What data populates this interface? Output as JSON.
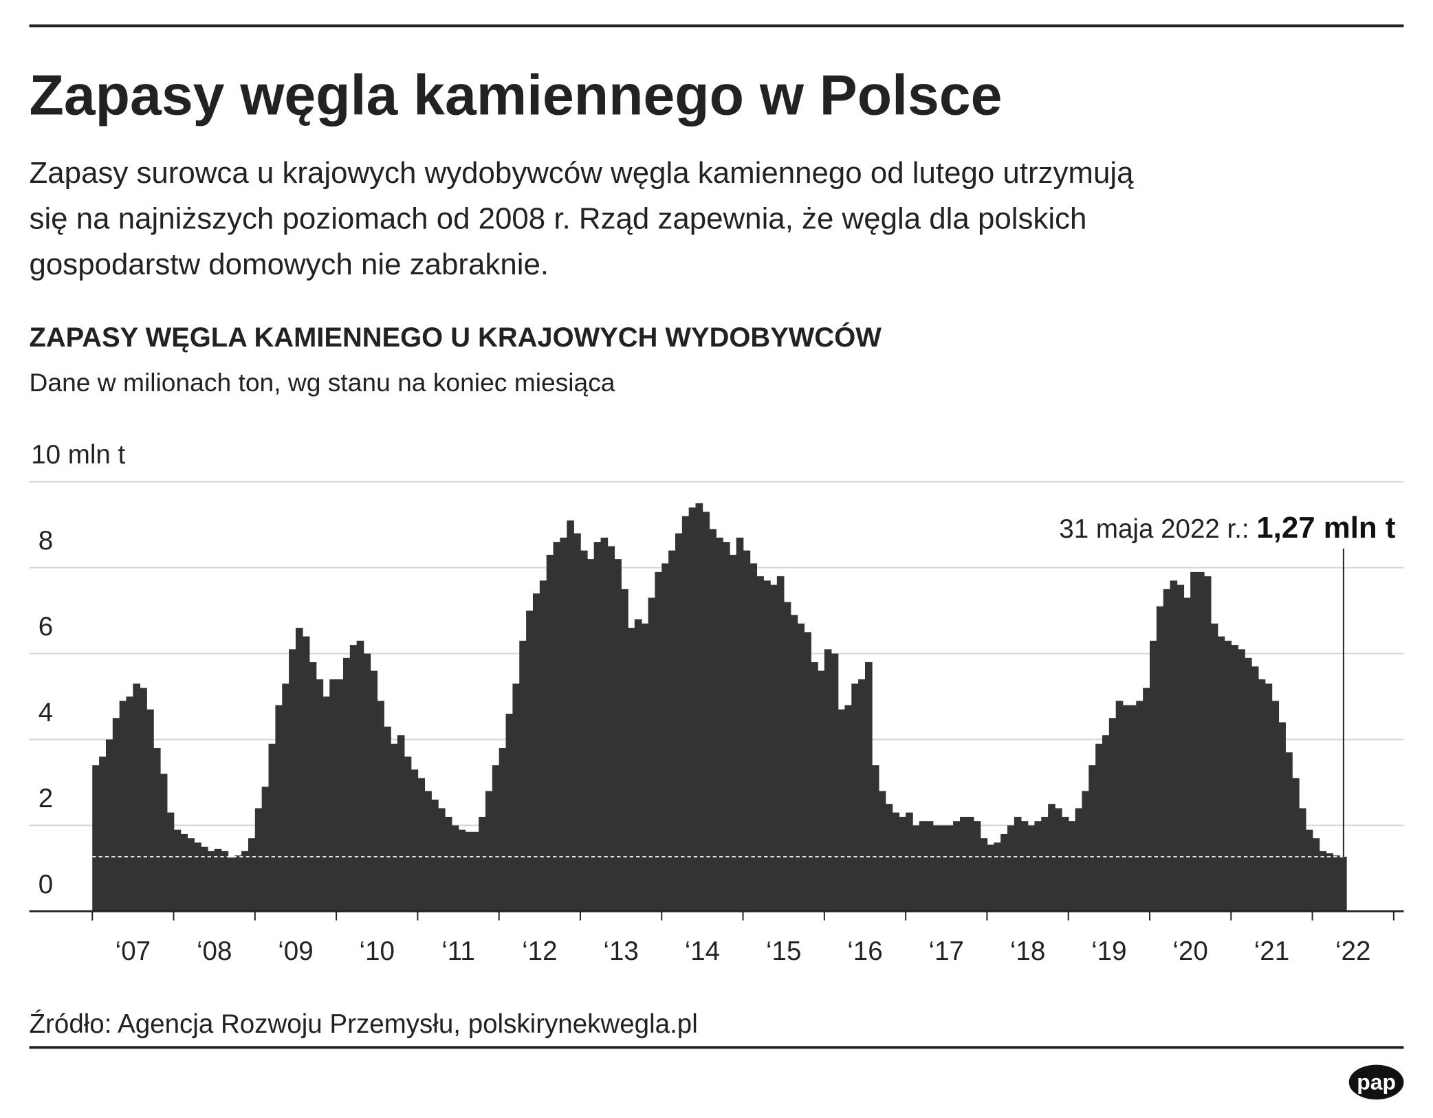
{
  "chart_data": {
    "type": "bar",
    "title": "Zapasy węgla kamiennego w Polsce",
    "description": [
      "Zapasy surowca u krajowych wydobywców węgla kamiennego od lutego utrzymują",
      "się na najniższych poziomach od 2008 r. Rząd zapewnia, że węgla dla polskich",
      "gospodarstw domowych nie zabraknie."
    ],
    "chart_title": "ZAPASY WĘGLA KAMIENNEGO U KRAJOWYCH WYDOBYWCÓW",
    "subtitle": "Dane w milionach ton, wg stanu na koniec miesiąca",
    "categories": [
      "‘07",
      "‘08",
      "‘09",
      "‘10",
      "‘11",
      "‘12",
      "‘13",
      "‘14",
      "‘15",
      "‘16",
      "‘17",
      "‘18",
      "‘19",
      "‘20",
      "‘21",
      "‘22"
    ],
    "values": [
      [
        3.4,
        3.6,
        4.0,
        4.5,
        4.9,
        5.0,
        5.3,
        5.2,
        4.7,
        3.8,
        3.2,
        2.3
      ],
      [
        1.9,
        1.8,
        1.7,
        1.6,
        1.5,
        1.4,
        1.45,
        1.4,
        1.25,
        1.3,
        1.4,
        1.7
      ],
      [
        2.4,
        2.9,
        3.9,
        4.8,
        5.3,
        6.1,
        6.6,
        6.4,
        5.8,
        5.4,
        5.0,
        5.4
      ],
      [
        5.4,
        5.9,
        6.2,
        6.3,
        6.0,
        5.6,
        4.9,
        4.3,
        3.9,
        4.1,
        3.6,
        3.3
      ],
      [
        3.1,
        2.8,
        2.6,
        2.4,
        2.2,
        2.0,
        1.9,
        1.85,
        1.85,
        2.2,
        2.8,
        3.4
      ],
      [
        3.8,
        4.6,
        5.3,
        6.3,
        7.0,
        7.4,
        7.7,
        8.3,
        8.6,
        8.7,
        9.1,
        8.8
      ],
      [
        8.4,
        8.2,
        8.6,
        8.7,
        8.5,
        8.2,
        7.5,
        6.6,
        6.8,
        6.7,
        7.3,
        7.9
      ],
      [
        8.1,
        8.4,
        8.8,
        9.2,
        9.4,
        9.5,
        9.3,
        8.9,
        8.7,
        8.6,
        8.3,
        8.7
      ],
      [
        8.4,
        8.1,
        7.8,
        7.7,
        7.6,
        7.8,
        7.2,
        6.9,
        6.7,
        6.5,
        5.8,
        5.6
      ],
      [
        6.1,
        6.0,
        4.7,
        4.8,
        5.3,
        5.4,
        5.8,
        3.4,
        2.8,
        2.5,
        2.3,
        2.2
      ],
      [
        2.3,
        2.0,
        2.1,
        2.1,
        2.0,
        2.0,
        2.0,
        2.1,
        2.2,
        2.2,
        2.1,
        1.7
      ],
      [
        1.55,
        1.6,
        1.8,
        2.0,
        2.2,
        2.1,
        2.0,
        2.1,
        2.2,
        2.5,
        2.4,
        2.2
      ],
      [
        2.1,
        2.4,
        2.8,
        3.4,
        3.9,
        4.1,
        4.5,
        4.9,
        4.8,
        4.8,
        4.9,
        5.2
      ],
      [
        6.3,
        7.1,
        7.5,
        7.7,
        7.6,
        7.3,
        7.9,
        7.9,
        7.8,
        6.7,
        6.4,
        6.3
      ],
      [
        6.2,
        6.1,
        5.9,
        5.7,
        5.4,
        5.3,
        4.9,
        4.4,
        3.7,
        3.1,
        2.4,
        1.9
      ],
      [
        1.7,
        1.4,
        1.35,
        1.3,
        1.27
      ]
    ],
    "color": "#333333",
    "ylim": [
      0,
      10
    ],
    "yticks": [
      0,
      2,
      4,
      6,
      8,
      {
        "value": 10,
        "label": "10 mln t"
      }
    ],
    "grid": true,
    "annotation": {
      "date": "31 maja 2022 r.:",
      "value_label": "1,27 mln t"
    },
    "source": "Źródło: Agencja Rozwoju Przemysłu, polskirynekwegla.pl",
    "logo": "pap"
  }
}
